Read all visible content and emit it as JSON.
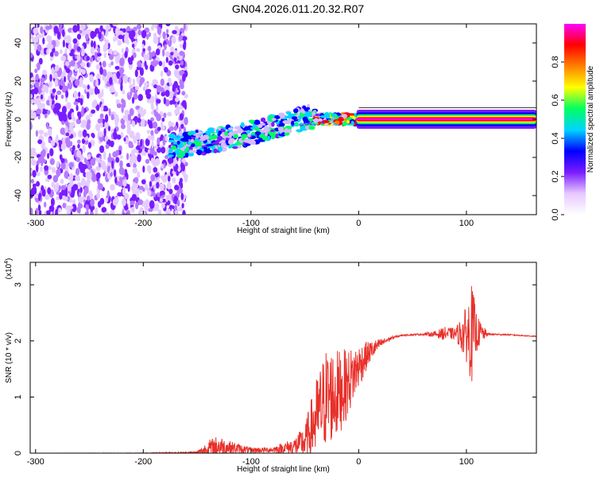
{
  "title": "GN04.2026.011.20.32.R07",
  "chart_data": [
    {
      "type": "heatmap",
      "xlabel": "Height of straight line (km)",
      "ylabel": "Frequency (Hz)",
      "xlim": [
        -305,
        165
      ],
      "ylim": [
        -50,
        50
      ],
      "xticks": [
        -300,
        -200,
        -100,
        0,
        100
      ],
      "yticks": [
        -40,
        -20,
        0,
        20,
        40
      ],
      "grid": false,
      "colorbar": {
        "label": "Normalized spectral amplitude",
        "range": [
          0,
          1
        ],
        "ticks": [
          "0.0",
          "0.2",
          "0.4",
          "0.6",
          "0.8"
        ],
        "colors": [
          "#ffffff",
          "#e7c8ff",
          "#7a1cff",
          "#0000ff",
          "#00d4ff",
          "#00ff60",
          "#ffff00",
          "#ff8000",
          "#ff0000",
          "#ff00ff"
        ]
      },
      "regions": [
        {
          "x": [
            -305,
            -160
          ],
          "freq": [
            -50,
            50
          ],
          "amplitude": [
            0.0,
            0.25
          ],
          "description": "noise"
        },
        {
          "x": [
            -175,
            -120
          ],
          "freq_center": -14,
          "amplitude_max": 0.45
        },
        {
          "x": [
            -120,
            -40
          ],
          "freq_center": -2,
          "amplitude_max": 0.5
        },
        {
          "x": [
            -40,
            0
          ],
          "freq_center": 0,
          "amplitude_max": 0.8
        },
        {
          "x": [
            0,
            165
          ],
          "freq_center": 0,
          "amplitude_max": 1.0
        }
      ]
    },
    {
      "type": "line",
      "xlabel": "Height of straight line (km)",
      "ylabel": "SNR (10 * v/v)",
      "yscale_label": "(x10",
      "yscale_exp": "4",
      "xlim": [
        -305,
        165
      ],
      "ylim": [
        0,
        3.4
      ],
      "xticks": [
        -300,
        -200,
        -100,
        0,
        100
      ],
      "yticks": [
        0,
        1,
        2,
        3
      ],
      "grid": false,
      "color": "#e8302a",
      "x": [
        -305,
        -200,
        -150,
        -140,
        -130,
        -120,
        -100,
        -80,
        -60,
        -50,
        -40,
        -30,
        -20,
        -10,
        0,
        10,
        20,
        30,
        40,
        60,
        70,
        80,
        90,
        100,
        105,
        110,
        120,
        140,
        165
      ],
      "y": [
        0.0,
        0.0,
        0.01,
        0.08,
        0.12,
        0.1,
        0.05,
        0.06,
        0.12,
        0.2,
        0.6,
        1.0,
        1.05,
        1.25,
        1.55,
        1.8,
        1.95,
        2.05,
        2.1,
        2.12,
        2.12,
        2.13,
        2.13,
        2.12,
        2.14,
        2.14,
        2.12,
        2.11,
        2.08
      ],
      "noise": [
        0.0,
        0.005,
        0.02,
        0.15,
        0.2,
        0.12,
        0.05,
        0.05,
        0.15,
        0.3,
        0.7,
        0.9,
        0.8,
        0.6,
        0.4,
        0.2,
        0.08,
        0.03,
        0.01,
        0.02,
        0.05,
        0.12,
        0.1,
        0.5,
        0.9,
        0.3,
        0.02,
        0.01,
        0.01
      ]
    }
  ]
}
